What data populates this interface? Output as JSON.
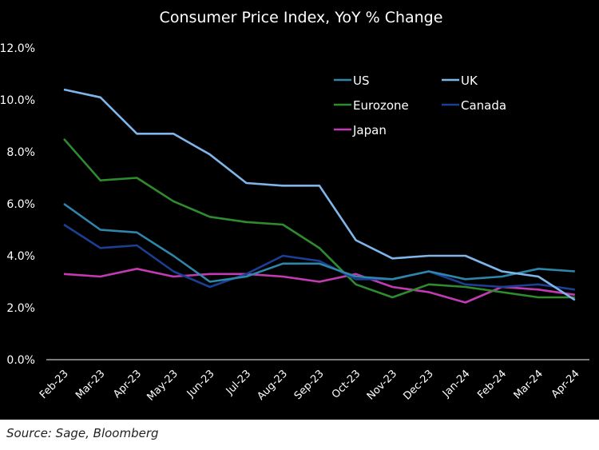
{
  "chart_data": {
    "type": "line",
    "title": "Consumer Price Index, YoY % Change",
    "xlabel": "",
    "ylabel": "",
    "ylim": [
      0,
      12
    ],
    "yticks": [
      0,
      2,
      4,
      6,
      8,
      10,
      12
    ],
    "ytick_labels": [
      "0.0%",
      "2.0%",
      "4.0%",
      "6.0%",
      "8.0%",
      "10.0%",
      "12.0%"
    ],
    "grid": false,
    "legend_position": "top-right",
    "categories": [
      "Feb-23",
      "Mar-23",
      "Apr-23",
      "May-23",
      "Jun-23",
      "Jul-23",
      "Aug-23",
      "Sep-23",
      "Oct-23",
      "Nov-23",
      "Dec-23",
      "Jan-24",
      "Feb-24",
      "Mar-24",
      "Apr-24"
    ],
    "series": [
      {
        "name": "US",
        "color": "#2e86ab",
        "values": [
          6.0,
          5.0,
          4.9,
          4.0,
          3.0,
          3.2,
          3.7,
          3.7,
          3.2,
          3.1,
          3.4,
          3.1,
          3.2,
          3.5,
          3.4
        ]
      },
      {
        "name": "UK",
        "color": "#7fb6ea",
        "values": [
          10.4,
          10.1,
          8.7,
          8.7,
          7.9,
          6.8,
          6.7,
          6.7,
          4.6,
          3.9,
          4.0,
          4.0,
          3.4,
          3.2,
          2.3
        ]
      },
      {
        "name": "Eurozone",
        "color": "#2e8b2e",
        "values": [
          8.5,
          6.9,
          7.0,
          6.1,
          5.5,
          5.3,
          5.2,
          4.3,
          2.9,
          2.4,
          2.9,
          2.8,
          2.6,
          2.4,
          2.4
        ]
      },
      {
        "name": "Canada",
        "color": "#1c3f94",
        "values": [
          5.2,
          4.3,
          4.4,
          3.4,
          2.8,
          3.3,
          4.0,
          3.8,
          3.1,
          3.1,
          3.4,
          2.9,
          2.8,
          2.9,
          2.7
        ]
      },
      {
        "name": "Japan",
        "color": "#c23bb3",
        "values": [
          3.3,
          3.2,
          3.5,
          3.2,
          3.3,
          3.3,
          3.2,
          3.0,
          3.3,
          2.8,
          2.6,
          2.2,
          2.8,
          2.7,
          2.5
        ]
      }
    ]
  },
  "source": "Source: Sage, Bloomberg"
}
